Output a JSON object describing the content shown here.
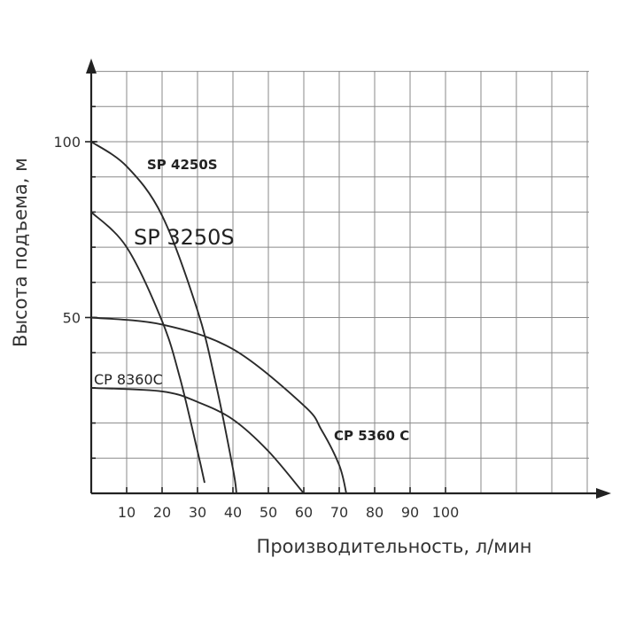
{
  "chart_data": {
    "type": "line",
    "title": "",
    "xlabel": "Производительность, л/мин",
    "ylabel": "Высота подъема, м",
    "xlim": [
      0,
      145
    ],
    "ylim": [
      0,
      120
    ],
    "x_ticks": [
      10,
      20,
      30,
      40,
      50,
      60,
      70,
      80,
      90,
      100
    ],
    "y_ticks": [
      50,
      100
    ],
    "grid": true,
    "series": [
      {
        "name": "SP 4250S",
        "x": [
          0,
          10,
          20,
          30,
          35,
          40,
          41
        ],
        "y": [
          100,
          93,
          79,
          52,
          32,
          7,
          0
        ]
      },
      {
        "name": "SP 3250S",
        "x": [
          0,
          10,
          20,
          25,
          30,
          32
        ],
        "y": [
          80,
          70,
          49,
          33,
          12,
          3
        ]
      },
      {
        "name": "CP 5360 C",
        "x": [
          0,
          20,
          40,
          60,
          65,
          70,
          72
        ],
        "y": [
          50,
          48,
          41,
          25,
          18,
          8,
          0
        ]
      },
      {
        "name": "CP 8360C",
        "x": [
          0,
          20,
          30,
          40,
          50,
          60
        ],
        "y": [
          30,
          29,
          26,
          21,
          12,
          0
        ]
      }
    ]
  }
}
